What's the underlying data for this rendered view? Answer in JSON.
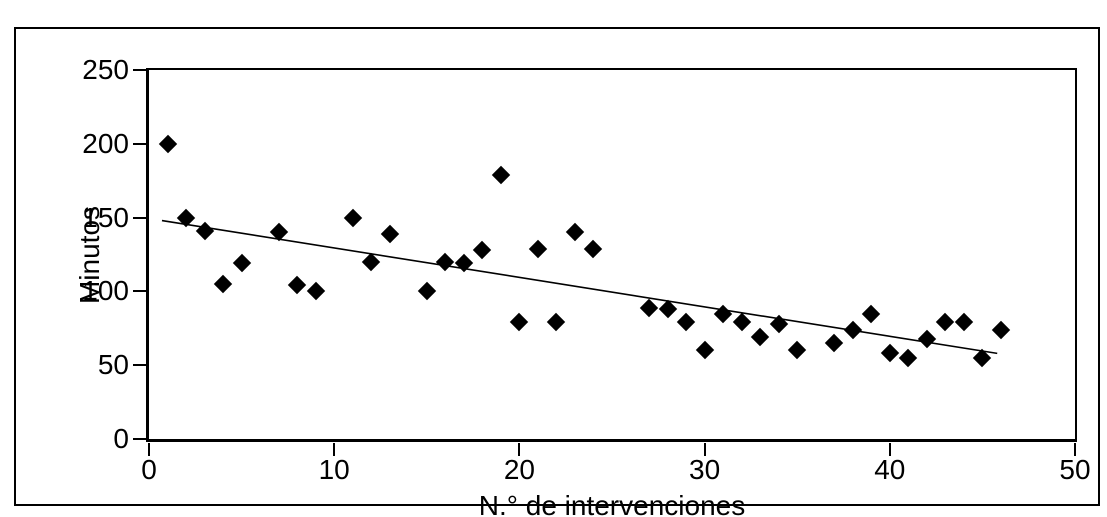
{
  "figure": {
    "background": "#ffffff",
    "border_color": "#000000",
    "text_color": "#000000"
  },
  "chart_data": {
    "type": "scatter",
    "title": "",
    "xlabel": "N.° de intervenciones",
    "ylabel": "Minutos",
    "xlim": [
      0,
      50
    ],
    "ylim": [
      0,
      250
    ],
    "x_ticks": [
      0,
      10,
      20,
      30,
      40,
      50
    ],
    "y_ticks": [
      0,
      50,
      100,
      150,
      200,
      250
    ],
    "grid": false,
    "legend": false,
    "marker": "diamond",
    "marker_color": "#000000",
    "points": [
      [
        1,
        200
      ],
      [
        2,
        150
      ],
      [
        3,
        141
      ],
      [
        4,
        105
      ],
      [
        5,
        119
      ],
      [
        7,
        140
      ],
      [
        8,
        104
      ],
      [
        9,
        100
      ],
      [
        11,
        150
      ],
      [
        12,
        120
      ],
      [
        13,
        139
      ],
      [
        15,
        100
      ],
      [
        16,
        120
      ],
      [
        17,
        119
      ],
      [
        18,
        128
      ],
      [
        19,
        179
      ],
      [
        20,
        79
      ],
      [
        21,
        129
      ],
      [
        22,
        79
      ],
      [
        23,
        140
      ],
      [
        24,
        129
      ],
      [
        27,
        89
      ],
      [
        28,
        88
      ],
      [
        29,
        79
      ],
      [
        30,
        60
      ],
      [
        31,
        85
      ],
      [
        32,
        79
      ],
      [
        33,
        69
      ],
      [
        34,
        78
      ],
      [
        35,
        60
      ],
      [
        37,
        65
      ],
      [
        38,
        74
      ],
      [
        39,
        85
      ],
      [
        40,
        58
      ],
      [
        41,
        55
      ],
      [
        42,
        68
      ],
      [
        43,
        79
      ],
      [
        44,
        79
      ],
      [
        45,
        55
      ],
      [
        46,
        74
      ]
    ],
    "trend_line": {
      "x1": 0.7,
      "y1": 148,
      "x2": 45.8,
      "y2": 58
    }
  }
}
